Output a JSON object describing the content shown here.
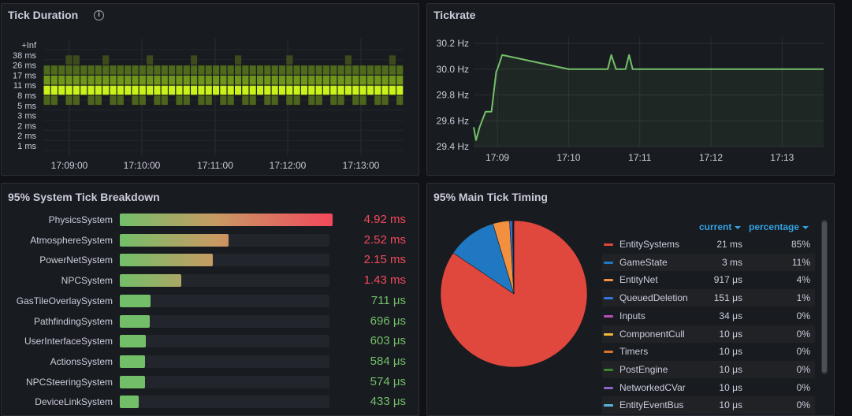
{
  "panels": {
    "tick_duration": {
      "title": "Tick Duration",
      "y_buckets": [
        "+Inf",
        "38 ms",
        "26 ms",
        "17 ms",
        "11 ms",
        "8 ms",
        "5 ms",
        "3 ms",
        "2 ms",
        "2 ms",
        "1 ms"
      ],
      "x_ticks": [
        "17:09:00",
        "17:10:00",
        "17:11:00",
        "17:12:00",
        "17:13:00"
      ]
    },
    "tickrate": {
      "title": "Tickrate",
      "y_ticks": [
        "30.2 Hz",
        "30.0 Hz",
        "29.8 Hz",
        "29.6 Hz",
        "29.4 Hz"
      ],
      "x_ticks": [
        "17:09",
        "17:10",
        "17:11",
        "17:12",
        "17:13"
      ]
    },
    "system_breakdown": {
      "title": "95% System Tick Breakdown",
      "max_ms": 4.92,
      "items": [
        {
          "label": "PhysicsSystem",
          "value": "4.92 ms",
          "ms": 4.92,
          "level": "high"
        },
        {
          "label": "AtmosphereSystem",
          "value": "2.52 ms",
          "ms": 2.52,
          "level": "high"
        },
        {
          "label": "PowerNetSystem",
          "value": "2.15 ms",
          "ms": 2.15,
          "level": "high"
        },
        {
          "label": "NPCSystem",
          "value": "1.43 ms",
          "ms": 1.43,
          "level": "high"
        },
        {
          "label": "GasTileOverlaySystem",
          "value": "711 μs",
          "ms": 0.711,
          "level": "low"
        },
        {
          "label": "PathfindingSystem",
          "value": "696 μs",
          "ms": 0.696,
          "level": "low"
        },
        {
          "label": "UserInterfaceSystem",
          "value": "603 μs",
          "ms": 0.603,
          "level": "low"
        },
        {
          "label": "ActionsSystem",
          "value": "584 μs",
          "ms": 0.584,
          "level": "low"
        },
        {
          "label": "NPCSteeringSystem",
          "value": "574 μs",
          "ms": 0.574,
          "level": "low"
        },
        {
          "label": "DeviceLinkSystem",
          "value": "433 μs",
          "ms": 0.433,
          "level": "low"
        }
      ]
    },
    "main_tick": {
      "title": "95% Main Tick Timing",
      "legend_headers": {
        "current": "current",
        "percentage": "percentage"
      },
      "items": [
        {
          "label": "EntitySystems",
          "current": "21 ms",
          "percentage": "85%",
          "color": "#e0483e",
          "share": 0.85
        },
        {
          "label": "GameState",
          "current": "3 ms",
          "percentage": "11%",
          "color": "#1f78c1",
          "share": 0.11
        },
        {
          "label": "EntityNet",
          "current": "917 μs",
          "percentage": "4%",
          "color": "#f2903f",
          "share": 0.037
        },
        {
          "label": "QueuedDeletion",
          "current": "151 μs",
          "percentage": "1%",
          "color": "#3274d9",
          "share": 0.006
        },
        {
          "label": "Inputs",
          "current": "34 μs",
          "percentage": "0%",
          "color": "#b74fb7",
          "share": 0.0015
        },
        {
          "label": "ComponentCull",
          "current": "10 μs",
          "percentage": "0%",
          "color": "#f4b73c",
          "share": 0.0004
        },
        {
          "label": "Timers",
          "current": "10 μs",
          "percentage": "0%",
          "color": "#d9722a",
          "share": 0.0004
        },
        {
          "label": "PostEngine",
          "current": "10 μs",
          "percentage": "0%",
          "color": "#37872d",
          "share": 0.0004
        },
        {
          "label": "NetworkedCVar",
          "current": "10 μs",
          "percentage": "0%",
          "color": "#8f62c8",
          "share": 0.0004
        },
        {
          "label": "EntityEventBus",
          "current": "10 μs",
          "percentage": "0%",
          "color": "#5ab4d9",
          "share": 0.0004
        }
      ]
    }
  },
  "chart_data": [
    {
      "type": "heatmap",
      "title": "Tick Duration",
      "y_categories": [
        "+Inf",
        "38 ms",
        "26 ms",
        "17 ms",
        "11 ms",
        "8 ms",
        "5 ms",
        "3 ms",
        "2 ms",
        "2 ms",
        "1 ms"
      ],
      "x_ticks": [
        "17:09:00",
        "17:10:00",
        "17:11:00",
        "17:12:00",
        "17:13:00"
      ],
      "columns": 49,
      "row_intensity": {
        "38 ms": 0.15,
        "26 ms": 0.35,
        "17 ms": 0.6,
        "11 ms": 1.0,
        "8 ms": 0.35
      }
    },
    {
      "type": "line",
      "title": "Tickrate",
      "x_ticks": [
        "17:09",
        "17:10",
        "17:11",
        "17:12",
        "17:13"
      ],
      "ylim": [
        29.4,
        30.2
      ],
      "series": [
        {
          "x": [
            "17:08:40",
            "17:08:42",
            "17:08:45",
            "17:08:50",
            "17:08:55",
            "17:08:59",
            "17:09:00",
            "17:09:04",
            "17:10:00",
            "17:10:30",
            "17:10:33",
            "17:10:36",
            "17:10:40",
            "17:10:48",
            "17:10:51",
            "17:10:54",
            "17:11:00",
            "17:12:00",
            "17:13:00",
            "17:13:35"
          ],
          "values": [
            29.55,
            29.45,
            29.55,
            29.67,
            29.67,
            29.98,
            30.0,
            30.11,
            30.0,
            30.0,
            30.0,
            30.11,
            30.0,
            30.0,
            30.11,
            30.0,
            30.0,
            30.0,
            30.0,
            30.0
          ]
        }
      ]
    },
    {
      "type": "pie",
      "title": "95% Main Tick Timing",
      "categories": [
        "EntitySystems",
        "GameState",
        "EntityNet",
        "QueuedDeletion",
        "Inputs",
        "ComponentCull",
        "Timers",
        "PostEngine",
        "NetworkedCVar",
        "EntityEventBus"
      ],
      "values": [
        85,
        11,
        4,
        1,
        0,
        0,
        0,
        0,
        0,
        0
      ]
    }
  ]
}
